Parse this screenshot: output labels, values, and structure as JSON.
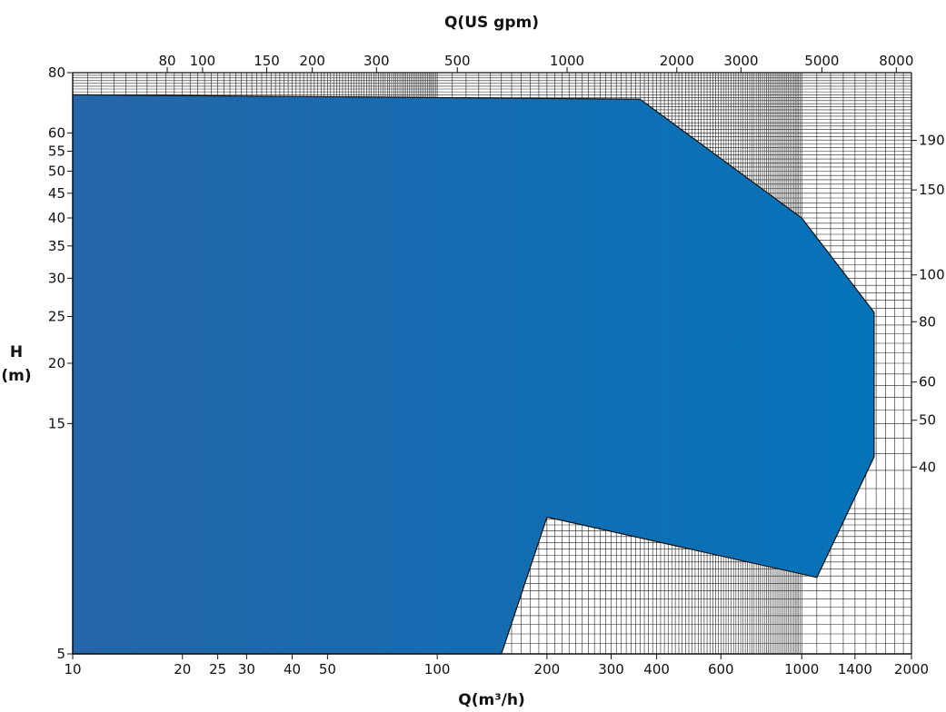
{
  "chart_data": {
    "type": "area",
    "title": "",
    "xlabel": "Q(m³/h)",
    "x2label": "Q(US gpm)",
    "ylabel": "H",
    "ylabel_unit": "(m)",
    "xscale": "log",
    "yscale": "log",
    "xlim": [
      10,
      2000
    ],
    "ylim": [
      5,
      80
    ],
    "x_ticks": [
      10,
      20,
      25,
      30,
      40,
      50,
      100,
      200,
      300,
      400,
      600,
      1000,
      1400,
      2000
    ],
    "y_ticks": [
      5,
      15,
      20,
      25,
      30,
      35,
      40,
      45,
      50,
      55,
      60,
      80
    ],
    "top_ticks": [
      "80",
      "100",
      "150",
      "200",
      "300",
      "500",
      "1000",
      "2000",
      "3000",
      "5000",
      "8000"
    ],
    "right_ticks": [
      "190",
      "150",
      "100",
      "80",
      "60",
      "50",
      "40"
    ],
    "grid": true,
    "fill_color_left": "#2565a9",
    "fill_color_right": "#0573b9",
    "series": [
      {
        "points": [
          [
            10,
            72
          ],
          [
            360,
            70.5
          ],
          [
            1000,
            40
          ],
          [
            1580,
            25.5
          ],
          [
            1580,
            12.8
          ],
          [
            1100,
            7.2
          ],
          [
            200,
            9.6
          ],
          [
            150,
            5
          ],
          [
            10,
            5
          ]
        ]
      }
    ]
  }
}
